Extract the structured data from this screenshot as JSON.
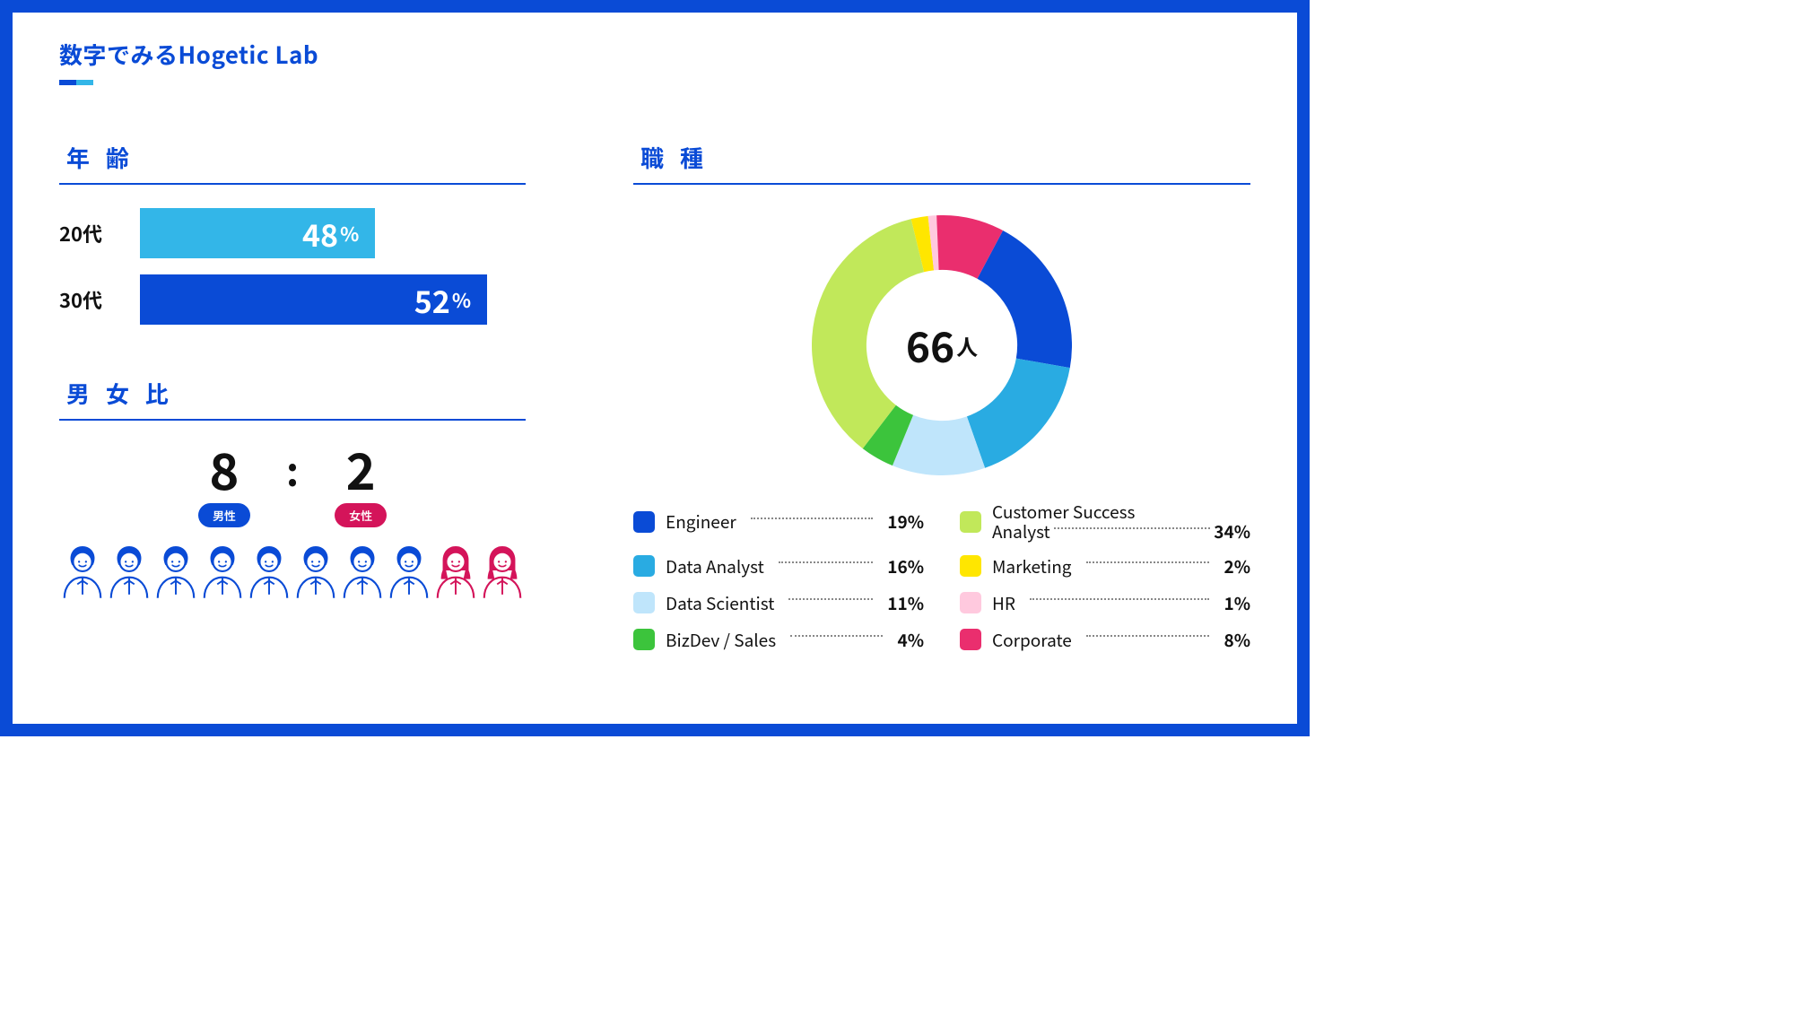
{
  "page": {
    "title": "数字でみるHogetic Lab",
    "border_color": "#0a4bd6",
    "accent_dark": "#0a4bd6",
    "accent_light": "#33b6e8"
  },
  "age": {
    "title": "年 齢",
    "bars": [
      {
        "label": "20代",
        "value": 48,
        "color": "#33b6e8",
        "width_pct": 61
      },
      {
        "label": "30代",
        "value": 52,
        "color": "#0a4bd6",
        "width_pct": 90
      }
    ]
  },
  "gender": {
    "title": "男 女 比",
    "male": {
      "value": "8",
      "label": "男性",
      "pill_color": "#0a4bd6",
      "icon_color": "#0a4bd6"
    },
    "female": {
      "value": "2",
      "label": "女性",
      "pill_color": "#d4145a",
      "icon_color": "#d4145a"
    },
    "male_count": 8,
    "female_count": 2
  },
  "roles": {
    "title": "職 種",
    "center_number": "66",
    "center_unit": "人",
    "donut": {
      "inner_ratio": 0.58,
      "start_angle_deg": -62
    },
    "items": [
      {
        "label": "Engineer",
        "value": "19%",
        "pct": 19,
        "color": "#0a4bd6"
      },
      {
        "label": "Data Analyst",
        "value": "16%",
        "pct": 16,
        "color": "#29abe2"
      },
      {
        "label": "Data Scientist",
        "value": "11%",
        "pct": 11,
        "color": "#bfe5fb"
      },
      {
        "label": "BizDev / Sales",
        "value": "4%",
        "pct": 4,
        "color": "#3cc43c"
      },
      {
        "label": "Customer Success Analyst",
        "value": "34%",
        "pct": 34,
        "color": "#c1e85a",
        "two_line": true,
        "line1": "Customer Success",
        "line2": "Analyst"
      },
      {
        "label": "Marketing",
        "value": "2%",
        "pct": 2,
        "color": "#ffe600"
      },
      {
        "label": "HR",
        "value": "1%",
        "pct": 1,
        "color": "#ffc9de"
      },
      {
        "label": "Corporate",
        "value": "8%",
        "pct": 8,
        "color": "#ea2e6e"
      }
    ]
  }
}
